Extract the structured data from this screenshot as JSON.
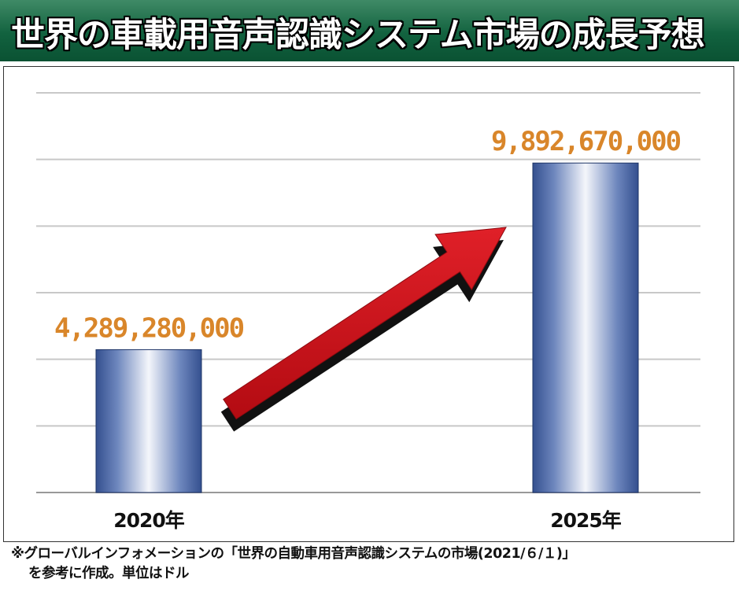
{
  "title": "世界の車載用音声認識システム市場の成長予想",
  "chart_data": {
    "type": "bar",
    "categories": [
      "2020年",
      "2025年"
    ],
    "values": [
      4289280000,
      9892670000
    ],
    "value_labels": [
      "4,289,280,000",
      "9,892,670,000"
    ],
    "ylim": [
      0,
      12000000000
    ],
    "grid": true,
    "annotation": "growth-arrow",
    "colors": {
      "bar": "#3f5ba3",
      "value_label": "#d9862a",
      "arrow": "#d2141c",
      "grid": "#c8c8c8"
    }
  },
  "source": {
    "line1": "※グローバルインフォメーションの「世界の自動車用音声認識システムの市場(2021/６/１)」",
    "line2": "を参考に作成。単位はドル"
  }
}
